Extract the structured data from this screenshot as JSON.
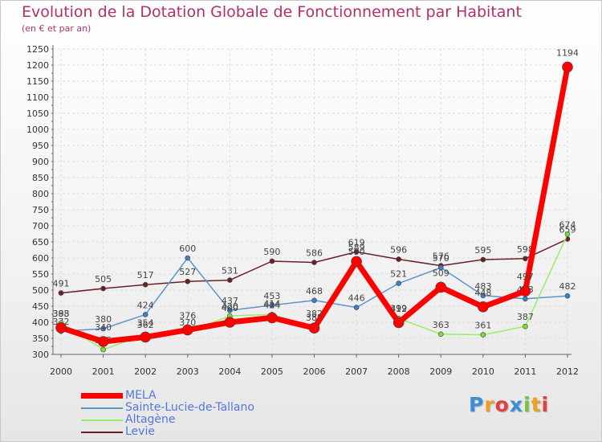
{
  "chart_data": {
    "type": "line",
    "title": "Evolution de la Dotation Globale de Fonctionnement par Habitant",
    "subtitle": "(en € et par an)",
    "xlabel": "",
    "ylabel": "",
    "categories": [
      "2000",
      "2001",
      "2002",
      "2003",
      "2004",
      "2005",
      "2006",
      "2007",
      "2008",
      "2009",
      "2010",
      "2011",
      "2012"
    ],
    "ylim": [
      300,
      1250
    ],
    "y_ticks": [
      300,
      350,
      400,
      450,
      500,
      550,
      600,
      650,
      700,
      750,
      800,
      850,
      900,
      950,
      1000,
      1050,
      1100,
      1150,
      1200,
      1250
    ],
    "grid": true,
    "legend_position": "bottom-left",
    "series": [
      {
        "name": "Levie",
        "color": "#6b2027",
        "values": [
          491,
          505,
          517,
          527,
          531,
          590,
          586,
          619,
          596,
          576,
          595,
          598,
          659
        ]
      },
      {
        "name": "Sainte-Lucie-de-Tallano",
        "color": "#5b95cf",
        "values": [
          372,
          380,
          424,
          600,
          437,
          453,
          468,
          446,
          521,
          570,
          483,
          473,
          482
        ]
      },
      {
        "name": "Altagène",
        "color": "#99ee66",
        "values": [
          398,
          315,
          362,
          370,
          420,
          424,
          385,
          590,
          412,
          363,
          361,
          387,
          674
        ]
      },
      {
        "name": "MELA",
        "color": "#ff0000",
        "values": [
          383,
          340,
          354,
          376,
          400,
          414,
          382,
          589,
          399,
          509,
          448,
          497,
          1194
        ]
      }
    ],
    "legend_order": [
      "MELA",
      "Sainte-Lucie-de-Tallano",
      "Altagène",
      "Levie"
    ]
  },
  "legend": [
    "MELA",
    "Sainte-Lucie-de-Tallano",
    "Altagène",
    "Levie"
  ],
  "logo": {
    "letters": [
      "P",
      "r",
      "o",
      "x",
      "i",
      "t",
      "i"
    ],
    "colors": [
      "#3a8fd8",
      "#f0a020",
      "#e04040",
      "#3a8fd8",
      "#7ac040",
      "#f0a020",
      "#e04040"
    ]
  }
}
